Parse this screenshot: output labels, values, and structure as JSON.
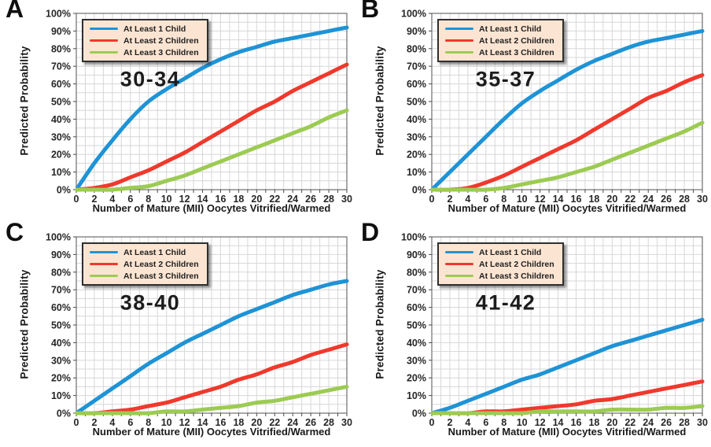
{
  "figure": {
    "colors": {
      "line_at_least_1_child": "#1E93D6",
      "line_at_least_2_children": "#EF392C",
      "line_at_least_3_children": "#9CCB52",
      "legend_background": "#FBE5D2",
      "gridline": "#D7D7D7",
      "plot_border": "#6E6E6E"
    }
  },
  "chart_data": [
    {
      "type": "line",
      "panel_label": "A",
      "age_group": "30-34",
      "xlabel": "Number of Mature (MII) Oocytes Vitrified/Warmed",
      "ylabel": "Predicted Probability",
      "xlim": [
        0,
        30
      ],
      "ylim": [
        0,
        100
      ],
      "x_tick_step": 2,
      "x_grid_step": 1,
      "y_tick_step": 10,
      "y_grid_step": 5,
      "grid": true,
      "legend_position": "top-left",
      "x": [
        0,
        2,
        4,
        6,
        8,
        10,
        12,
        14,
        16,
        18,
        20,
        22,
        24,
        26,
        28,
        30
      ],
      "series": [
        {
          "name": "At Least 1 Child",
          "color": "#1E93D6",
          "values": [
            0,
            15,
            28,
            40,
            50,
            57,
            63,
            69,
            74,
            78,
            81,
            84,
            86,
            88,
            90,
            92
          ]
        },
        {
          "name": "At Least 2 Children",
          "color": "#EF392C",
          "values": [
            0,
            1,
            3,
            7,
            11,
            16,
            21,
            27,
            33,
            39,
            45,
            50,
            56,
            61,
            66,
            71
          ]
        },
        {
          "name": "At Least 3 Children",
          "color": "#9CCB52",
          "values": [
            0,
            0,
            0,
            1,
            2,
            5,
            8,
            12,
            16,
            20,
            24,
            28,
            32,
            36,
            41,
            45
          ]
        }
      ]
    },
    {
      "type": "line",
      "panel_label": "B",
      "age_group": "35-37",
      "xlabel": "Number of Mature (MII) Oocytes Vitrified/Warmed",
      "ylabel": "Predicted Probability",
      "xlim": [
        0,
        30
      ],
      "ylim": [
        0,
        100
      ],
      "x_tick_step": 2,
      "x_grid_step": 1,
      "y_tick_step": 10,
      "y_grid_step": 5,
      "grid": true,
      "legend_position": "top-left",
      "x": [
        0,
        2,
        4,
        6,
        8,
        10,
        12,
        14,
        16,
        18,
        20,
        22,
        24,
        26,
        28,
        30
      ],
      "series": [
        {
          "name": "At Least 1 Child",
          "color": "#1E93D6",
          "values": [
            0,
            10,
            20,
            30,
            40,
            49,
            56,
            62,
            68,
            73,
            77,
            81,
            84,
            86,
            88,
            90
          ]
        },
        {
          "name": "At Least 2 Children",
          "color": "#EF392C",
          "values": [
            0,
            0,
            1,
            4,
            8,
            13,
            18,
            23,
            28,
            34,
            40,
            46,
            52,
            56,
            61,
            65
          ]
        },
        {
          "name": "At Least 3 Children",
          "color": "#9CCB52",
          "values": [
            0,
            0,
            0,
            0,
            1,
            3,
            5,
            7,
            10,
            13,
            17,
            21,
            25,
            29,
            33,
            38
          ]
        }
      ]
    },
    {
      "type": "line",
      "panel_label": "C",
      "age_group": "38-40",
      "xlabel": "Number of Mature (MII) Oocytes Vitrified/Warmed",
      "ylabel": "Predicted Probability",
      "xlim": [
        0,
        30
      ],
      "ylim": [
        0,
        100
      ],
      "x_tick_step": 2,
      "x_grid_step": 1,
      "y_tick_step": 10,
      "y_grid_step": 5,
      "grid": true,
      "legend_position": "top-left",
      "x": [
        0,
        2,
        4,
        6,
        8,
        10,
        12,
        14,
        16,
        18,
        20,
        22,
        24,
        26,
        28,
        30
      ],
      "series": [
        {
          "name": "At Least 1 Child",
          "color": "#1E93D6",
          "values": [
            0,
            7,
            14,
            21,
            28,
            34,
            40,
            45,
            50,
            55,
            59,
            63,
            67,
            70,
            73,
            75
          ]
        },
        {
          "name": "At Least 2 Children",
          "color": "#EF392C",
          "values": [
            0,
            0,
            1,
            2,
            4,
            6,
            9,
            12,
            15,
            19,
            22,
            26,
            29,
            33,
            36,
            39
          ]
        },
        {
          "name": "At Least 3 Children",
          "color": "#9CCB52",
          "values": [
            0,
            0,
            0,
            0,
            0,
            1,
            1,
            2,
            3,
            4,
            6,
            7,
            9,
            11,
            13,
            15
          ]
        }
      ]
    },
    {
      "type": "line",
      "panel_label": "D",
      "age_group": "41-42",
      "xlabel": "Number of Mature (MII) Oocytes Vitrified/Warmed",
      "ylabel": "Predicted Probability",
      "xlim": [
        0,
        30
      ],
      "ylim": [
        0,
        100
      ],
      "x_tick_step": 2,
      "x_grid_step": 1,
      "y_tick_step": 10,
      "y_grid_step": 5,
      "grid": true,
      "legend_position": "top-left",
      "x": [
        0,
        2,
        4,
        6,
        8,
        10,
        12,
        14,
        16,
        18,
        20,
        22,
        24,
        26,
        28,
        30
      ],
      "series": [
        {
          "name": "At Least 1 Child",
          "color": "#1E93D6",
          "values": [
            0,
            3,
            7,
            11,
            15,
            19,
            22,
            26,
            30,
            34,
            38,
            41,
            44,
            47,
            50,
            53
          ]
        },
        {
          "name": "At Least 2 Children",
          "color": "#EF392C",
          "values": [
            0,
            0,
            0,
            1,
            1,
            2,
            3,
            4,
            5,
            7,
            8,
            10,
            12,
            14,
            16,
            18
          ]
        },
        {
          "name": "At Least 3 Children",
          "color": "#9CCB52",
          "values": [
            0,
            0,
            0,
            0,
            0,
            0,
            1,
            1,
            1,
            1,
            2,
            2,
            2,
            3,
            3,
            4
          ]
        }
      ]
    }
  ]
}
